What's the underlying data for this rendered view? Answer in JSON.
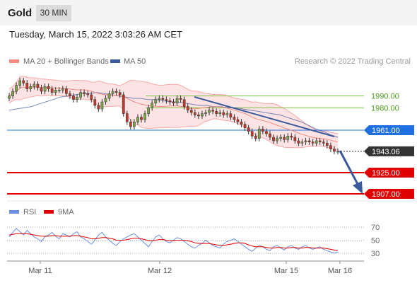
{
  "header": {
    "instrument": "Gold",
    "timeframe": "30 MIN",
    "datetime": "Tuesday, March 15, 2022 3:03:26 AM CET"
  },
  "colors": {
    "bollinger": "#f7a8a8",
    "bollinger_fill": "#fde3e3",
    "ma50": "#3a5a9c",
    "resistance": "#7cc242",
    "pivot": "#1e6fe0",
    "support": "#e00000",
    "trend": "#3a5a9c",
    "candle_up": "#7aa64a",
    "candle_down": "#c0392b",
    "rsi": "#6b8ee0",
    "rsi_ma": "#e00000"
  },
  "chart_data": [
    {
      "type": "line",
      "title": "",
      "legend": [
        {
          "name": "MA 20 + Bollinger Bands",
          "color": "#f28b82"
        },
        {
          "name": "MA 50",
          "color": "#3a5a9c"
        }
      ],
      "source": "Research © 2022 Trading Central",
      "x_ticks": [
        "Mar 11",
        "Mar 12",
        "Mar 15",
        "Mar 16"
      ],
      "levels": [
        {
          "value": 1990.0,
          "label": "1990.00",
          "kind": "resistance"
        },
        {
          "value": 1980.0,
          "label": "1980.00",
          "kind": "resistance"
        },
        {
          "value": 1961.0,
          "label": "1961.00",
          "kind": "pivot"
        },
        {
          "value": 1925.0,
          "label": "1925.00",
          "kind": "support"
        },
        {
          "value": 1907.0,
          "label": "1907.00",
          "kind": "support"
        }
      ],
      "last_price": {
        "value": 1943.06,
        "label": "1943.06"
      },
      "close": [
        1990,
        1994,
        1999,
        2003,
        2001,
        1996,
        1998,
        2000,
        1997,
        1994,
        1998,
        1996,
        1993,
        1995,
        1995,
        1996,
        1992,
        1990,
        1987,
        1989,
        1993,
        1992,
        1991,
        1987,
        1982,
        1979,
        1985,
        1988,
        1992,
        1994,
        1993,
        1991,
        1975,
        1968,
        1964,
        1968,
        1972,
        1970,
        1975,
        1980,
        1984,
        1987,
        1988,
        1987,
        1986,
        1985,
        1984,
        1988,
        1987,
        1981,
        1978,
        1976,
        1974,
        1973,
        1975,
        1976,
        1978,
        1977,
        1975,
        1976,
        1974,
        1975,
        1972,
        1970,
        1968,
        1966,
        1963,
        1960,
        1956,
        1954,
        1962,
        1960,
        1958,
        1955,
        1952,
        1954,
        1955,
        1953,
        1956,
        1955,
        1952,
        1950,
        1951,
        1952,
        1951,
        1950,
        1952,
        1951,
        1950,
        1948,
        1945,
        1943,
        1943
      ],
      "ma50": [
        1978,
        1979,
        1980,
        1981,
        1983,
        1985,
        1987,
        1989,
        1990,
        1991,
        1992,
        1992,
        1993,
        1992,
        1991,
        1990,
        1989,
        1988,
        1988,
        1987,
        1987,
        1986,
        1985,
        1985,
        1984,
        1983,
        1982,
        1982,
        1981,
        1981,
        1980,
        1980,
        1979,
        1978,
        1977,
        1976,
        1975,
        1974,
        1972,
        1970,
        1968,
        1965,
        1962,
        1960,
        1957,
        1955
      ],
      "ylim": [
        1900,
        2010
      ]
    },
    {
      "type": "line",
      "title": "",
      "legend": [
        {
          "name": "RSI",
          "color": "#6b8ee0"
        },
        {
          "name": "9MA",
          "color": "#e00000"
        }
      ],
      "y_ticks": [
        "70",
        "50",
        "30"
      ],
      "levels": [
        70,
        50,
        30
      ],
      "rsi": [
        55,
        62,
        68,
        63,
        58,
        65,
        60,
        55,
        52,
        48,
        55,
        58,
        62,
        56,
        52,
        60,
        58,
        55,
        60,
        63,
        55,
        52,
        48,
        44,
        50,
        58,
        62,
        55,
        50,
        45,
        42,
        48,
        52,
        55,
        58,
        60,
        55,
        50,
        45,
        40,
        48,
        55,
        58,
        52,
        48,
        46,
        50,
        54,
        52,
        48,
        44,
        40,
        38,
        42,
        45,
        50,
        46,
        42,
        40,
        38,
        44,
        48,
        50,
        52,
        48,
        44,
        40,
        36,
        33,
        38,
        42,
        40,
        36,
        34,
        40,
        42,
        38,
        35,
        40,
        42,
        38,
        36,
        40,
        42,
        38,
        36,
        38,
        40,
        36,
        34,
        32,
        30,
        32
      ],
      "rsi_ma": [
        58,
        59,
        60,
        60,
        60,
        60,
        59,
        58,
        57,
        56,
        56,
        56,
        57,
        57,
        56,
        56,
        56,
        56,
        57,
        57,
        56,
        55,
        54,
        52,
        52,
        53,
        54,
        54,
        53,
        52,
        50,
        50,
        50,
        51,
        52,
        53,
        53,
        52,
        51,
        49,
        49,
        50,
        51,
        51,
        50,
        49,
        49,
        50,
        50,
        50,
        49,
        48,
        46,
        45,
        45,
        45,
        45,
        44,
        43,
        42,
        42,
        43,
        44,
        45,
        46,
        46,
        45,
        43,
        41,
        40,
        40,
        40,
        39,
        38,
        38,
        39,
        39,
        38,
        38,
        39,
        39,
        38,
        38,
        39,
        39,
        38,
        38,
        38,
        38,
        37,
        36,
        35,
        34
      ],
      "ylim": [
        20,
        80
      ]
    }
  ]
}
